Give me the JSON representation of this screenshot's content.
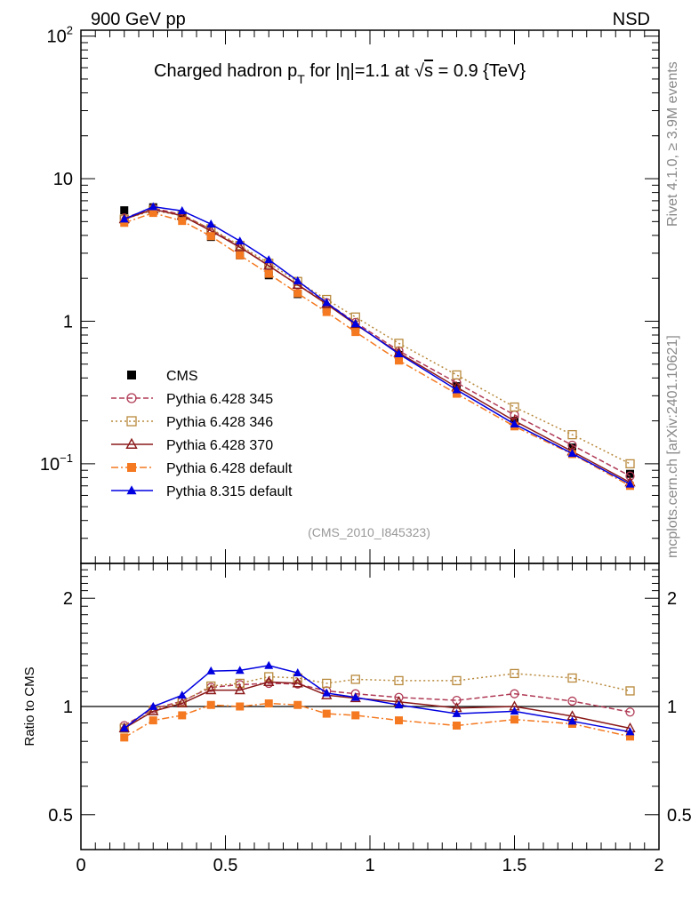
{
  "header": {
    "left": "900 GeV pp",
    "right": "NSD"
  },
  "side_labels": {
    "rivet": "Rivet 4.1.0, ≥ 3.9M events",
    "mcplots": "mcplots.cern.ch [arXiv:2401.10621]"
  },
  "chart_data": [
    {
      "type": "line",
      "panel": "main",
      "title_parts": {
        "a": "Charged hadron p",
        "a_sub": "T",
        "b": " for |η|=1.1 at ",
        "root": "√",
        "s": "s",
        "c": " = 0.9 {TeV}"
      },
      "annotation": "(CMS_2010_I845323)",
      "y_scale": "log",
      "xlim": [
        0,
        2
      ],
      "ylim": [
        0.02,
        110
      ],
      "y_ticks": [
        {
          "value": 100,
          "base": "10",
          "exp": "2"
        },
        {
          "value": 10,
          "base": "10",
          "exp": ""
        },
        {
          "value": 1,
          "base": "1",
          "exp": ""
        },
        {
          "value": 0.1,
          "base": "10",
          "exp": "−1"
        }
      ],
      "legend_position": "lower-left",
      "x": [
        0.15,
        0.25,
        0.35,
        0.45,
        0.55,
        0.65,
        0.75,
        0.85,
        0.95,
        1.1,
        1.3,
        1.5,
        1.7,
        1.9
      ],
      "series": [
        {
          "name": "CMS",
          "color": "#000000",
          "marker": "square-filled",
          "line": "none",
          "values": [
            6.0,
            6.3,
            5.4,
            3.9,
            2.9,
            2.1,
            1.55,
            1.22,
            0.9,
            0.58,
            0.35,
            0.2,
            0.13,
            0.085
          ]
        },
        {
          "name": "Pythia 6.428 345",
          "color": "#b03a55",
          "marker": "circle-open",
          "line": "dashed",
          "values": [
            5.3,
            6.2,
            5.6,
            4.4,
            3.35,
            2.45,
            1.8,
            1.35,
            0.98,
            0.62,
            0.37,
            0.22,
            0.135,
            0.082
          ]
        },
        {
          "name": "Pythia 6.428 346",
          "color": "#b8893c",
          "marker": "square-open",
          "line": "dotted",
          "values": [
            5.2,
            6.0,
            5.5,
            4.45,
            3.4,
            2.55,
            1.9,
            1.42,
            1.07,
            0.7,
            0.42,
            0.25,
            0.16,
            0.1
          ]
        },
        {
          "name": "Pythia 6.428 370",
          "color": "#8b1a1a",
          "marker": "triangle-open",
          "line": "solid",
          "values": [
            5.2,
            6.1,
            5.5,
            4.3,
            3.3,
            2.45,
            1.8,
            1.32,
            0.95,
            0.6,
            0.345,
            0.2,
            0.122,
            0.074
          ]
        },
        {
          "name": "Pythia 6.428 default",
          "color": "#f47920",
          "marker": "square-filled",
          "line": "dashdot",
          "values": [
            4.9,
            5.75,
            5.05,
            3.95,
            2.9,
            2.15,
            1.57,
            1.16,
            0.84,
            0.53,
            0.31,
            0.183,
            0.117,
            0.07
          ]
        },
        {
          "name": "Pythia 8.315 default",
          "color": "#0000e0",
          "marker": "triangle-filled",
          "line": "solid",
          "values": [
            5.2,
            6.35,
            5.95,
            4.8,
            3.65,
            2.7,
            1.92,
            1.35,
            0.96,
            0.59,
            0.33,
            0.19,
            0.118,
            0.072
          ]
        }
      ]
    },
    {
      "type": "line",
      "panel": "ratio",
      "ylabel": "Ratio to CMS",
      "y_scale": "log",
      "xlim": [
        0,
        2
      ],
      "ylim": [
        0.4,
        2.5
      ],
      "reference_line": 1,
      "y_ticks": [
        {
          "value": 2,
          "label": "2"
        },
        {
          "value": 1,
          "label": "1"
        },
        {
          "value": 0.5,
          "label": "0.5"
        }
      ],
      "x_ticks": [
        {
          "value": 0,
          "label": "0"
        },
        {
          "value": 0.5,
          "label": "0.5"
        },
        {
          "value": 1,
          "label": "1"
        },
        {
          "value": 1.5,
          "label": "1.5"
        },
        {
          "value": 2,
          "label": "2"
        }
      ],
      "x": [
        0.15,
        0.25,
        0.35,
        0.45,
        0.55,
        0.65,
        0.75,
        0.85,
        0.95,
        1.1,
        1.3,
        1.5,
        1.7,
        1.9
      ],
      "series": [
        {
          "name": "Pythia 6.428 345",
          "color": "#b03a55",
          "marker": "circle-open",
          "line": "dashed",
          "values": [
            0.885,
            0.985,
            1.035,
            1.13,
            1.15,
            1.16,
            1.155,
            1.105,
            1.085,
            1.06,
            1.04,
            1.085,
            1.035,
            0.965
          ]
        },
        {
          "name": "Pythia 6.428 346",
          "color": "#b8893c",
          "marker": "square-open",
          "line": "dotted",
          "values": [
            0.87,
            0.975,
            1.03,
            1.14,
            1.16,
            1.21,
            1.2,
            1.16,
            1.19,
            1.18,
            1.18,
            1.235,
            1.2,
            1.105
          ]
        },
        {
          "name": "Pythia 6.428 370",
          "color": "#8b1a1a",
          "marker": "triangle-open",
          "line": "solid",
          "values": [
            0.87,
            0.97,
            1.02,
            1.11,
            1.11,
            1.17,
            1.16,
            1.075,
            1.055,
            1.03,
            0.99,
            1.0,
            0.94,
            0.87
          ]
        },
        {
          "name": "Pythia 6.428 default",
          "color": "#f47920",
          "marker": "square-filled",
          "line": "dashdot",
          "values": [
            0.82,
            0.915,
            0.945,
            1.01,
            1.0,
            1.02,
            1.01,
            0.955,
            0.945,
            0.915,
            0.885,
            0.92,
            0.895,
            0.825
          ]
        },
        {
          "name": "Pythia 8.315 default",
          "color": "#0000e0",
          "marker": "triangle-filled",
          "line": "solid",
          "values": [
            0.87,
            1.0,
            1.075,
            1.255,
            1.26,
            1.3,
            1.24,
            1.09,
            1.06,
            1.01,
            0.955,
            0.97,
            0.91,
            0.85
          ]
        }
      ]
    }
  ]
}
